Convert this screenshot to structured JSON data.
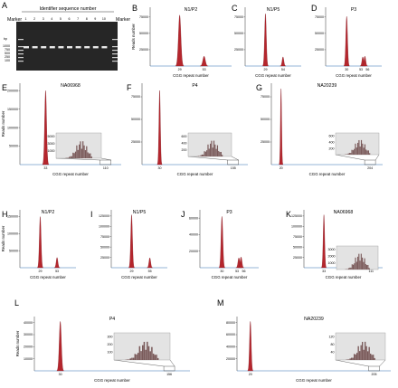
{
  "colors": {
    "peak": "#b5262d",
    "peak_dark": "#7a1820",
    "inset_bg": "#e3e3e3",
    "baseline": "#2f6fb0",
    "gel_bg": "#2a2a2a"
  },
  "gel": {
    "letter": "A",
    "title": "Identifier sequence number",
    "marker_left": "Marker",
    "marker_right": "Marker",
    "lanes": [
      "1",
      "2",
      "3",
      "4",
      "5",
      "6",
      "7",
      "8",
      "9",
      "10"
    ],
    "ladder": [
      "bp",
      "1000",
      "750",
      "500",
      "250",
      "100"
    ]
  },
  "panels": [
    {
      "letter": "B",
      "title": "N1/P2",
      "xlabel": "CGG repeat number",
      "ylabel": "Reads number",
      "yticks": [
        "25000",
        "50000",
        "75000"
      ],
      "ymax": 90000,
      "peaks": [
        {
          "x": 29,
          "h": 78000
        },
        {
          "x": 53,
          "h": 15000
        }
      ],
      "xticks": [
        "29",
        "53"
      ]
    },
    {
      "letter": "C",
      "title": "N1/P5",
      "xlabel": "CGG repeat number",
      "yticks": [
        "25000",
        "50000",
        "75000"
      ],
      "ymax": 90000,
      "peaks": [
        {
          "x": 29,
          "h": 80000
        },
        {
          "x": 54,
          "h": 14000
        }
      ],
      "xticks": [
        "29",
        "54"
      ]
    },
    {
      "letter": "D",
      "title": "P3",
      "xlabel": "CGG repeat number",
      "yticks": [
        "25000",
        "50000",
        "75000"
      ],
      "ymax": 90000,
      "peaks": [
        {
          "x": 30,
          "h": 76000
        },
        {
          "x": 53,
          "h": 14000
        },
        {
          "x": 56,
          "h": 15000
        }
      ],
      "xticks": [
        "30",
        "53",
        "56"
      ]
    },
    {
      "letter": "E",
      "title": "NA06968",
      "xlabel": "CGG repeat number",
      "ylabel": "Reads number",
      "yticks": [
        "50000",
        "100000",
        "150000",
        "200000"
      ],
      "ymax": 220000,
      "peaks": [
        {
          "x": 33,
          "h": 200000
        }
      ],
      "xticks": [
        "33",
        "110"
      ],
      "inset": {
        "peak": 110,
        "yticks": [
          "1000",
          "3000",
          "5000"
        ]
      }
    },
    {
      "letter": "F",
      "title": "P4",
      "xlabel": "CGG repeat number",
      "yticks": [
        "25000",
        "50000",
        "75000"
      ],
      "ymax": 90000,
      "peaks": [
        {
          "x": 30,
          "h": 82000
        }
      ],
      "xticks": [
        "30",
        "155"
      ],
      "inset": {
        "peak": 155,
        "yticks": [
          "200",
          "400",
          "600"
        ]
      }
    },
    {
      "letter": "G",
      "title": "NA20239",
      "xlabel": "CGG repeat number",
      "yticks": [
        "25000",
        "50000",
        "75000"
      ],
      "ymax": 90000,
      "peaks": [
        {
          "x": 20,
          "h": 84000
        }
      ],
      "xticks": [
        "20",
        "204"
      ],
      "inset": {
        "peak": 204,
        "yticks": [
          "200",
          "400",
          "600"
        ]
      }
    },
    {
      "letter": "H",
      "title": "N1/P2",
      "xlabel": "CGG repeat number",
      "ylabel": "Reads number",
      "yticks": [
        "50000",
        "100000",
        "150000"
      ],
      "ymax": 170000,
      "peaks": [
        {
          "x": 29,
          "h": 150000
        },
        {
          "x": 53,
          "h": 30000
        }
      ],
      "xticks": [
        "29",
        "53"
      ]
    },
    {
      "letter": "I",
      "title": "N1/P5",
      "xlabel": "CGG repeat number",
      "yticks": [
        "25000",
        "50000",
        "75000",
        "100000",
        "125000"
      ],
      "ymax": 140000,
      "peaks": [
        {
          "x": 29,
          "h": 128000
        },
        {
          "x": 55,
          "h": 24000
        }
      ],
      "xticks": [
        "29",
        "55"
      ]
    },
    {
      "letter": "J",
      "title": "P3",
      "xlabel": "CGG repeat number",
      "yticks": [
        "20000",
        "40000",
        "60000"
      ],
      "ymax": 70000,
      "peaks": [
        {
          "x": 30,
          "h": 62000
        },
        {
          "x": 53,
          "h": 12000
        },
        {
          "x": 56,
          "h": 13000
        }
      ],
      "xticks": [
        "30",
        "53",
        "56"
      ]
    },
    {
      "letter": "K",
      "title": "NA06968",
      "xlabel": "CGG repeat number",
      "yticks": [
        "25000",
        "50000",
        "75000",
        "100000",
        "125000"
      ],
      "ymax": 140000,
      "peaks": [
        {
          "x": 33,
          "h": 128000
        }
      ],
      "xticks": [
        "33",
        "111"
      ],
      "inset": {
        "peak": 111,
        "yticks": [
          "1000",
          "2000",
          "3000"
        ]
      }
    },
    {
      "letter": "L",
      "title": "P4",
      "xlabel": "CGG repeat number",
      "ylabel": "Reads number",
      "yticks": [
        "10000",
        "20000",
        "30000",
        "40000"
      ],
      "ymax": 45000,
      "peaks": [
        {
          "x": 30,
          "h": 41000
        }
      ],
      "xticks": [
        "30",
        "156"
      ],
      "inset": {
        "peak": 156,
        "yticks": [
          "100",
          "200",
          "300"
        ]
      }
    },
    {
      "letter": "M",
      "title": "NA20239",
      "xlabel": "CGG repeat number",
      "yticks": [
        "20000",
        "40000",
        "60000",
        "80000"
      ],
      "ymax": 90000,
      "peaks": [
        {
          "x": 20,
          "h": 82000
        }
      ],
      "xticks": [
        "20",
        "205"
      ],
      "inset": {
        "peak": 205,
        "yticks": [
          "40",
          "80",
          "120"
        ]
      }
    }
  ],
  "chart_data": [
    {
      "type": "bar",
      "title": "N1/P2",
      "xlabel": "CGG repeat number",
      "ylabel": "Reads number",
      "peaks_x": [
        29,
        53
      ],
      "peak_reads": [
        78000,
        15000
      ]
    },
    {
      "type": "bar",
      "title": "N1/P5",
      "xlabel": "CGG repeat number",
      "peaks_x": [
        29,
        54
      ],
      "peak_reads": [
        80000,
        14000
      ]
    },
    {
      "type": "bar",
      "title": "P3",
      "xlabel": "CGG repeat number",
      "peaks_x": [
        30,
        53,
        56
      ],
      "peak_reads": [
        76000,
        14000,
        15000
      ]
    },
    {
      "type": "bar",
      "title": "NA06968",
      "xlabel": "CGG repeat number",
      "ylabel": "Reads number",
      "peaks_x": [
        33,
        110
      ]
    },
    {
      "type": "bar",
      "title": "P4",
      "xlabel": "CGG repeat number",
      "peaks_x": [
        30,
        155
      ]
    },
    {
      "type": "bar",
      "title": "NA20239",
      "xlabel": "CGG repeat number",
      "peaks_x": [
        20,
        204
      ]
    },
    {
      "type": "bar",
      "title": "N1/P2",
      "xlabel": "CGG repeat number",
      "ylabel": "Reads number",
      "peaks_x": [
        29,
        53
      ]
    },
    {
      "type": "bar",
      "title": "N1/P5",
      "xlabel": "CGG repeat number",
      "peaks_x": [
        29,
        55
      ]
    },
    {
      "type": "bar",
      "title": "P3",
      "xlabel": "CGG repeat number",
      "peaks_x": [
        30,
        53,
        56
      ]
    },
    {
      "type": "bar",
      "title": "NA06968",
      "xlabel": "CGG repeat number",
      "peaks_x": [
        33,
        111
      ]
    },
    {
      "type": "bar",
      "title": "P4",
      "xlabel": "CGG repeat number",
      "ylabel": "Reads number",
      "peaks_x": [
        30,
        156
      ]
    },
    {
      "type": "bar",
      "title": "NA20239",
      "xlabel": "CGG repeat number",
      "peaks_x": [
        20,
        205
      ]
    }
  ]
}
